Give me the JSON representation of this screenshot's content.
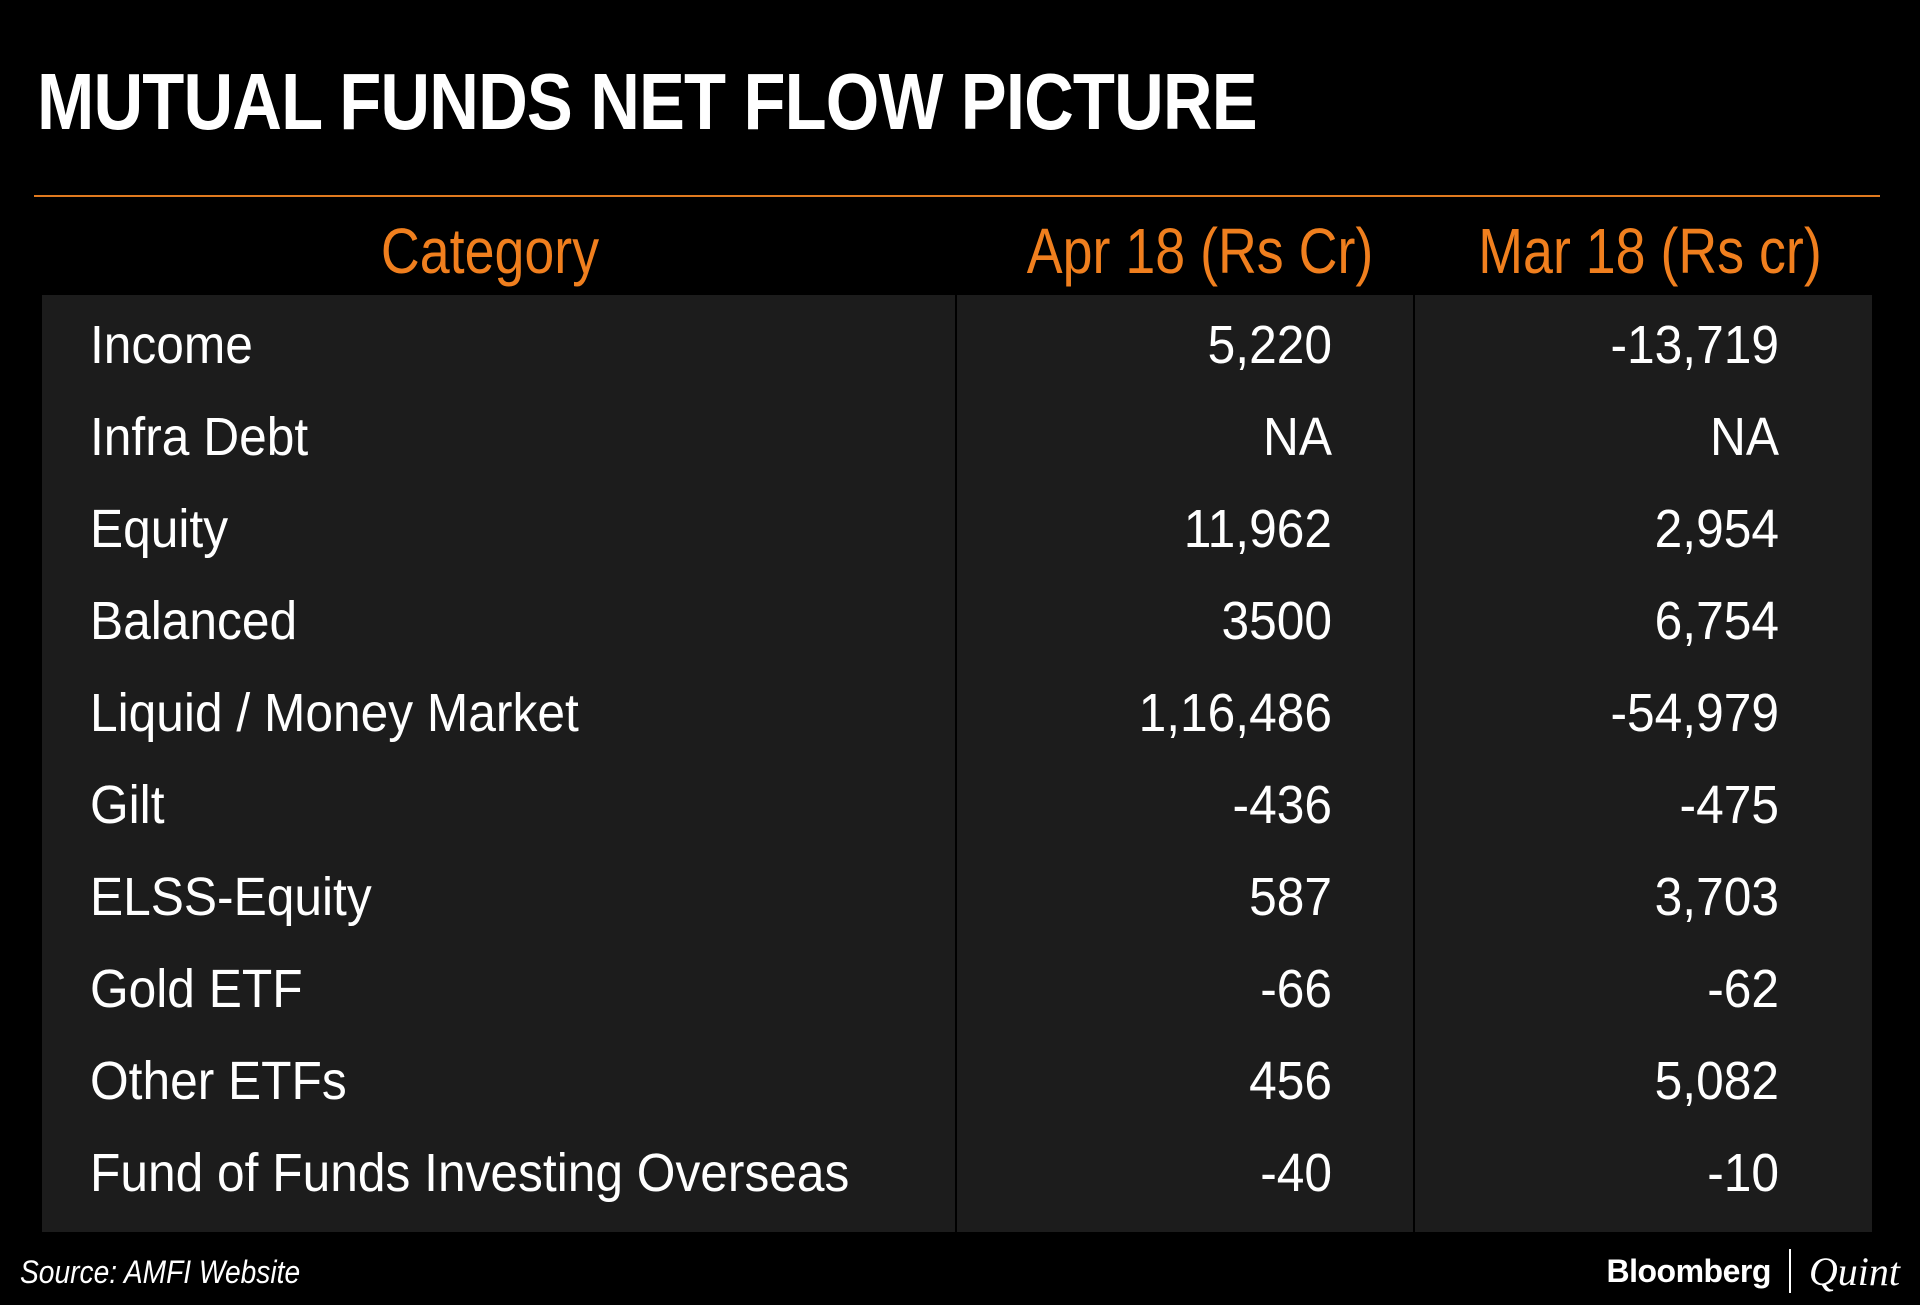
{
  "title": "MUTUAL FUNDS NET FLOW PICTURE",
  "colors": {
    "background": "#000000",
    "table_background": "#1c1c1c",
    "header_text": "#f07f1e",
    "rule": "#e07a1f",
    "body_text": "#ffffff"
  },
  "chart_data": {
    "type": "table",
    "columns": [
      "Category",
      "Apr 18 (Rs Cr)",
      "Mar 18 (Rs cr)"
    ],
    "rows": [
      [
        "Income",
        "5,220",
        "-13,719"
      ],
      [
        "Infra Debt",
        "NA",
        "NA"
      ],
      [
        "Equity",
        "11,962",
        "2,954"
      ],
      [
        "Balanced",
        "3500",
        "6,754"
      ],
      [
        "Liquid / Money Market",
        "1,16,486",
        "-54,979"
      ],
      [
        "Gilt",
        "-436",
        "-475"
      ],
      [
        "ELSS-Equity",
        "587",
        "3,703"
      ],
      [
        "Gold ETF",
        "-66",
        "-62"
      ],
      [
        "Other ETFs",
        "456",
        "5,082"
      ],
      [
        "Fund of Funds Investing Overseas",
        "-40",
        "-10"
      ]
    ]
  },
  "source": "Source: AMFI Website",
  "brand": {
    "name": "Bloomberg",
    "sub": "Quint"
  }
}
